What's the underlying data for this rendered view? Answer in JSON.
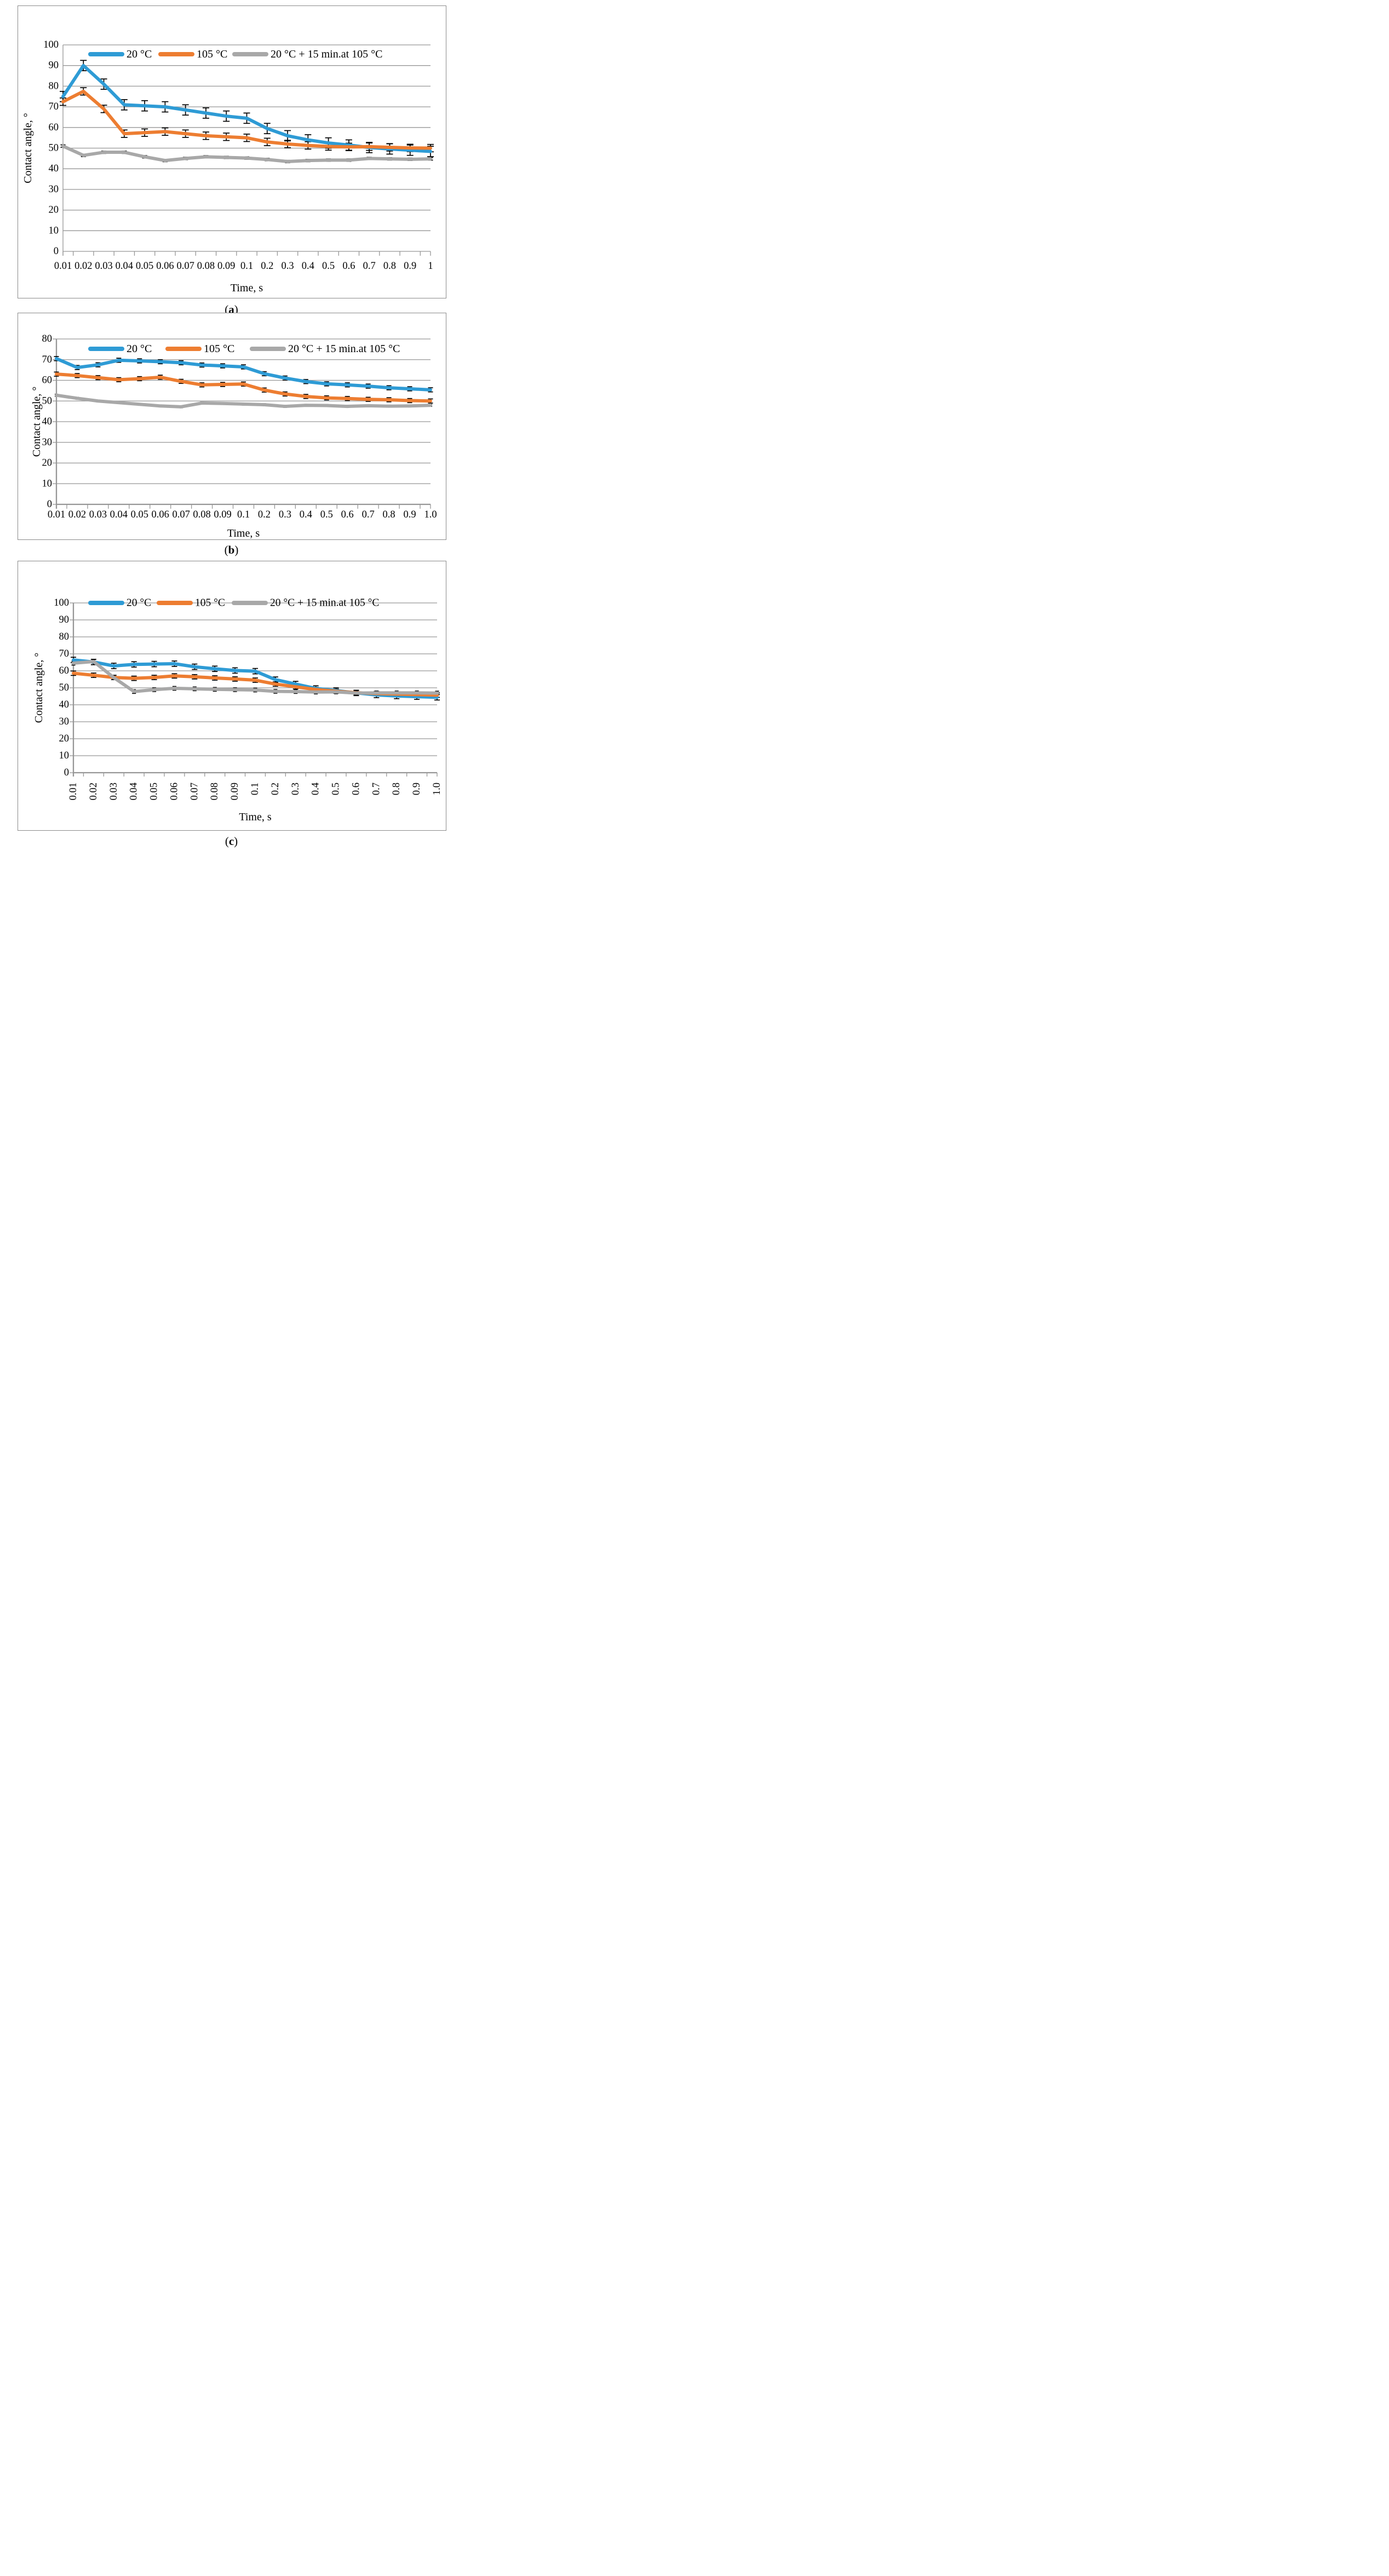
{
  "figure": {
    "x_axis_title": "Time, s",
    "y_axis_title": "Contact angle, °",
    "colors": {
      "series_20": "#2E9BD5",
      "series_105": "#ED7D31",
      "series_20_15min": "#A8A8A8",
      "gridline": "#969696",
      "error_bar": "#000000",
      "panel_border": "#8A8A8A",
      "text": "#000000"
    },
    "legend_entries": [
      "20 °C",
      "105 °C",
      "20 °C + 15 min.at 105 °C"
    ]
  },
  "chart_data": [
    {
      "id": "a",
      "type": "line",
      "caption": {
        "open": "(",
        "letter": "a",
        "close": ")"
      },
      "title": "",
      "xlabel": "Time, s",
      "ylabel": "Contact angle, °",
      "ylim": [
        0,
        100
      ],
      "ytick_step": 10,
      "grid": true,
      "legend_position": "top-inside",
      "categories": [
        "0.01",
        "0.02",
        "0.03",
        "0.04",
        "0.05",
        "0.06",
        "0.07",
        "0.08",
        "0.09",
        "0.1",
        "0.2",
        "0.3",
        "0.4",
        "0.5",
        "0.6",
        "0.7",
        "0.8",
        "0.9",
        "1"
      ],
      "series": [
        {
          "name": "20 °C",
          "color": "#2E9BD5",
          "err": 2.5,
          "values": [
            75,
            90,
            81,
            71,
            70.5,
            70,
            68.5,
            67,
            65.5,
            64.5,
            59.5,
            56,
            54,
            52.5,
            51.5,
            50.3,
            49.6,
            49,
            48.4
          ]
        },
        {
          "name": "105 °C",
          "color": "#ED7D31",
          "err": 1.8,
          "values": [
            72.5,
            77.5,
            69,
            57,
            57.5,
            58,
            57,
            56,
            55.5,
            55,
            53,
            52,
            51.3,
            50.8,
            50.6,
            50.7,
            50.4,
            50.1,
            50
          ]
        },
        {
          "name": "20 °C + 15 min.at 105 °C",
          "color": "#A8A8A8",
          "err": 0.6,
          "values": [
            51,
            46.5,
            48,
            48,
            45.8,
            44,
            45,
            45.8,
            45.5,
            45.2,
            44.5,
            43.5,
            44,
            44.2,
            44.2,
            45,
            44.8,
            44.6,
            44.8
          ]
        }
      ]
    },
    {
      "id": "b",
      "type": "line",
      "caption": {
        "open": "(",
        "letter": "b",
        "close": ")"
      },
      "title": "",
      "xlabel": "Time, s",
      "ylabel": "Contact angle, °",
      "ylim": [
        0,
        80
      ],
      "ytick_step": 10,
      "grid": true,
      "legend_position": "top-inside",
      "categories": [
        "0.01",
        "0.02",
        "0.03",
        "0.04",
        "0.05",
        "0.06",
        "0.07",
        "0.08",
        "0.09",
        "0.1",
        "0.2",
        "0.3",
        "0.4",
        "0.5",
        "0.6",
        "0.7",
        "0.8",
        "0.9",
        "1.0"
      ],
      "series": [
        {
          "name": "20 °C",
          "color": "#2E9BD5",
          "err": 1.0,
          "values": [
            70.5,
            66.2,
            67.5,
            69.7,
            69.4,
            69,
            68.5,
            67.4,
            67,
            66.5,
            63.2,
            61.1,
            59.4,
            58.3,
            57.8,
            57.2,
            56.4,
            55.9,
            55.4
          ]
        },
        {
          "name": "105 °C",
          "color": "#ED7D31",
          "err": 1.0,
          "values": [
            63,
            62.3,
            61.3,
            60.3,
            60.8,
            61.5,
            59.5,
            57.8,
            58,
            58.2,
            55.3,
            53.4,
            52.2,
            51.5,
            51.2,
            50.8,
            50.6,
            50.2,
            50
          ]
        },
        {
          "name": "20 °C + 15 min.at 105 °C",
          "color": "#A8A8A8",
          "err": 0.5,
          "values": [
            52.8,
            51.3,
            50,
            49.2,
            48.4,
            47.6,
            47.2,
            49,
            48.8,
            48.5,
            48.2,
            47.4,
            47.9,
            47.8,
            47.4,
            47.7,
            47.5,
            47.6,
            47.9
          ]
        }
      ]
    },
    {
      "id": "c",
      "type": "line",
      "caption": {
        "open": "(",
        "letter": "c",
        "close": ")"
      },
      "title": "",
      "xlabel": "Time, s",
      "ylabel": "Contact angle, °",
      "ylim": [
        0,
        100
      ],
      "ytick_step": 10,
      "grid": true,
      "legend_position": "top-inside",
      "x_label_rotation": -90,
      "categories": [
        "0.01",
        "0.02",
        "0.03",
        "0.04",
        "0.05",
        "0.06",
        "0.07",
        "0.08",
        "0.09",
        "0.1",
        "0.2",
        "0.3",
        "0.4",
        "0.5",
        "0.6",
        "0.7",
        "0.8",
        "0.9",
        "1.0"
      ],
      "series": [
        {
          "name": "20 °C",
          "color": "#2E9BD5",
          "err": 1.6,
          "values": [
            66.4,
            65.2,
            62.9,
            63.8,
            64,
            64.2,
            62.4,
            61.2,
            60.2,
            59.8,
            54.8,
            52.2,
            49.6,
            48.4,
            47,
            45.8,
            45.2,
            44.8,
            44.4
          ]
        },
        {
          "name": "105 °C",
          "color": "#ED7D31",
          "err": 1.3,
          "values": [
            58.6,
            57.4,
            56.1,
            55.6,
            56.1,
            57,
            56.5,
            55.8,
            55.2,
            54.5,
            52.2,
            50.6,
            49,
            48,
            47.1,
            46.6,
            46.3,
            46,
            45.7
          ]
        },
        {
          "name": "20 °C + 15 min.at 105 °C",
          "color": "#A8A8A8",
          "err": 1.1,
          "values": [
            64.5,
            65.5,
            56,
            47.8,
            48.9,
            49.7,
            49.4,
            49.1,
            48.9,
            48.7,
            47.9,
            47.8,
            47.5,
            47.6,
            46.9,
            47,
            47,
            47,
            46.9
          ]
        }
      ]
    }
  ]
}
